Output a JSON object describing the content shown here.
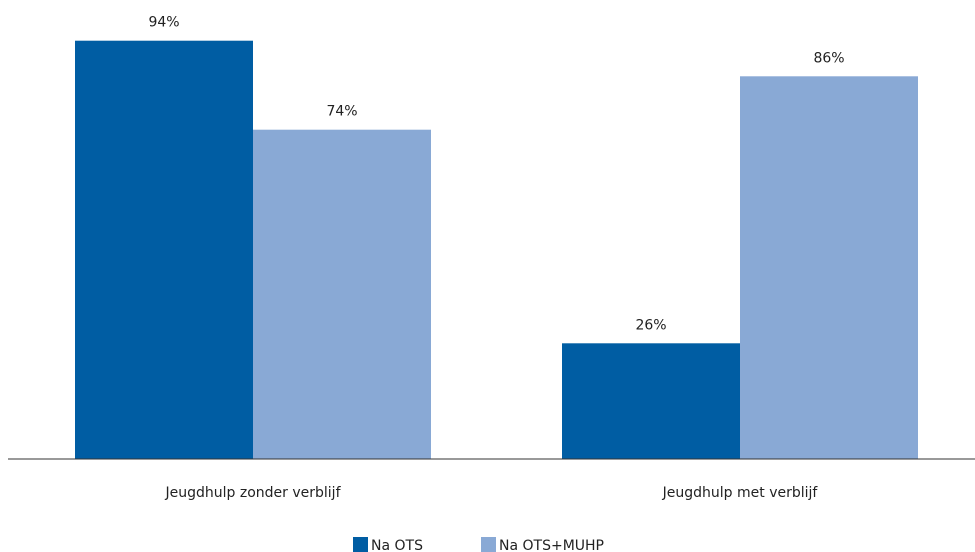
{
  "chart_data": {
    "type": "bar",
    "categories": [
      "Jeugdhulp zonder verblijf",
      "Jeugdhulp met verblijf"
    ],
    "series": [
      {
        "name": "Na OTS",
        "values": [
          94,
          26
        ],
        "labels": [
          "94%",
          "26%"
        ],
        "color": "#005da3"
      },
      {
        "name": "Na OTS+MUHP",
        "values": [
          74,
          86
        ],
        "labels": [
          "74%",
          "86%"
        ],
        "color": "#89a9d5"
      }
    ],
    "ylim": [
      0,
      100
    ],
    "grid": false,
    "legend": "bottom-center"
  }
}
